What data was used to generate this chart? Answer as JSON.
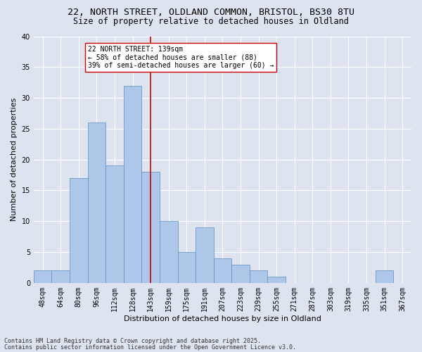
{
  "title_line1": "22, NORTH STREET, OLDLAND COMMON, BRISTOL, BS30 8TU",
  "title_line2": "Size of property relative to detached houses in Oldland",
  "xlabel": "Distribution of detached houses by size in Oldland",
  "ylabel": "Number of detached properties",
  "categories": [
    "48sqm",
    "64sqm",
    "80sqm",
    "96sqm",
    "112sqm",
    "128sqm",
    "143sqm",
    "159sqm",
    "175sqm",
    "191sqm",
    "207sqm",
    "223sqm",
    "239sqm",
    "255sqm",
    "271sqm",
    "287sqm",
    "303sqm",
    "319sqm",
    "335sqm",
    "351sqm",
    "367sqm"
  ],
  "values": [
    2,
    2,
    17,
    26,
    19,
    32,
    18,
    10,
    5,
    9,
    4,
    3,
    2,
    1,
    0,
    0,
    0,
    0,
    0,
    2,
    0
  ],
  "bar_color": "#aec6e8",
  "bar_edge_color": "#5a8fc0",
  "vline_x": 6.0,
  "vline_color": "#cc0000",
  "annotation_text": "22 NORTH STREET: 139sqm\n← 58% of detached houses are smaller (88)\n39% of semi-detached houses are larger (60) →",
  "annotation_box_color": "#ffffff",
  "annotation_box_edge": "#cc0000",
  "background_color": "#dde4f0",
  "plot_bg_color": "#dde4f0",
  "grid_color": "#ffffff",
  "ylim": [
    0,
    40
  ],
  "yticks": [
    0,
    5,
    10,
    15,
    20,
    25,
    30,
    35,
    40
  ],
  "footer_line1": "Contains HM Land Registry data © Crown copyright and database right 2025.",
  "footer_line2": "Contains public sector information licensed under the Open Government Licence v3.0.",
  "title_fontsize": 9.5,
  "subtitle_fontsize": 8.5,
  "axis_label_fontsize": 8,
  "tick_fontsize": 7,
  "annotation_fontsize": 7,
  "footer_fontsize": 6
}
